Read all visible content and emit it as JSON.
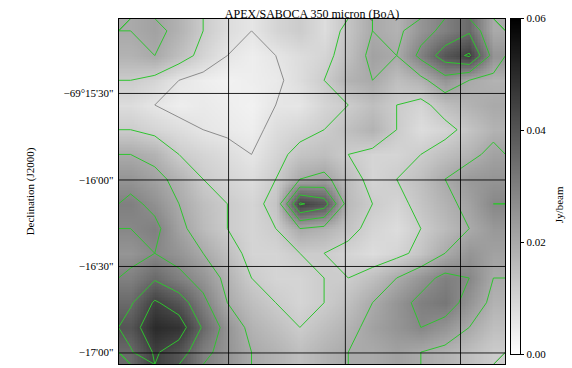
{
  "chart_data": {
    "type": "heatmap",
    "title": "APEX/SABOCA 350 micron (BoA)",
    "y_label": "Declination (J2000)",
    "xlim": [
      0,
      16
    ],
    "xticks": [
      4.55,
      9.38,
      14.14
    ],
    "ylim": [
      -69.284444,
      -69.251111
    ],
    "yticks": [
      {
        "value": -69.258333,
        "label": "−69°15'30\""
      },
      {
        "value": -69.266667,
        "label": "−16'00\""
      },
      {
        "value": -69.275,
        "label": "−16'30\""
      },
      {
        "value": -69.283333,
        "label": "−17'00\""
      }
    ],
    "grid": true,
    "tick_labels": "y",
    "cells": [
      [
        0.02,
        0.022,
        0.018,
        0.012,
        0.008,
        0.006,
        0.01,
        0.012,
        0.008,
        0.014,
        0.02,
        0.018,
        0.025,
        0.03,
        0.035,
        0.02
      ],
      [
        0.018,
        0.02,
        0.015,
        0.01,
        0.006,
        0.004,
        0.006,
        0.008,
        0.01,
        0.015,
        0.022,
        0.02,
        0.03,
        0.04,
        0.045,
        0.025
      ],
      [
        0.012,
        0.01,
        0.006,
        0.004,
        0.003,
        0.004,
        0.005,
        0.008,
        0.012,
        0.018,
        0.02,
        0.015,
        0.018,
        0.025,
        0.02,
        0.018
      ],
      [
        0.008,
        0.006,
        0.004,
        0.005,
        0.004,
        0.003,
        0.006,
        0.006,
        0.01,
        0.012,
        0.015,
        0.012,
        0.01,
        0.015,
        0.018,
        0.02
      ],
      [
        0.012,
        0.01,
        0.008,
        0.006,
        0.005,
        0.004,
        0.008,
        0.01,
        0.012,
        0.015,
        0.018,
        0.012,
        0.008,
        0.01,
        0.014,
        0.018
      ],
      [
        0.02,
        0.018,
        0.012,
        0.01,
        0.008,
        0.006,
        0.01,
        0.014,
        0.015,
        0.012,
        0.01,
        0.01,
        0.012,
        0.015,
        0.018,
        0.022
      ],
      [
        0.025,
        0.022,
        0.018,
        0.012,
        0.01,
        0.008,
        0.012,
        0.02,
        0.022,
        0.015,
        0.01,
        0.012,
        0.015,
        0.02,
        0.024,
        0.025
      ],
      [
        0.03,
        0.026,
        0.02,
        0.015,
        0.012,
        0.01,
        0.014,
        0.045,
        0.04,
        0.016,
        0.012,
        0.01,
        0.014,
        0.018,
        0.022,
        0.028
      ],
      [
        0.028,
        0.03,
        0.022,
        0.016,
        0.012,
        0.01,
        0.012,
        0.02,
        0.018,
        0.014,
        0.01,
        0.008,
        0.012,
        0.016,
        0.02,
        0.024
      ],
      [
        0.025,
        0.028,
        0.025,
        0.02,
        0.015,
        0.01,
        0.01,
        0.012,
        0.012,
        0.01,
        0.008,
        0.01,
        0.014,
        0.02,
        0.025,
        0.022
      ],
      [
        0.03,
        0.035,
        0.03,
        0.025,
        0.018,
        0.012,
        0.01,
        0.01,
        0.012,
        0.012,
        0.015,
        0.02,
        0.025,
        0.03,
        0.028,
        0.02
      ],
      [
        0.035,
        0.045,
        0.04,
        0.03,
        0.02,
        0.015,
        0.012,
        0.01,
        0.012,
        0.015,
        0.02,
        0.025,
        0.03,
        0.032,
        0.025,
        0.018
      ],
      [
        0.04,
        0.05,
        0.048,
        0.035,
        0.025,
        0.018,
        0.015,
        0.012,
        0.015,
        0.018,
        0.022,
        0.025,
        0.028,
        0.025,
        0.02,
        0.015
      ],
      [
        0.035,
        0.045,
        0.04,
        0.03,
        0.025,
        0.02,
        0.018,
        0.015,
        0.018,
        0.02,
        0.02,
        0.022,
        0.02,
        0.018,
        0.015,
        0.012
      ]
    ],
    "contour_levels": [
      0.006,
      0.012,
      0.02,
      0.028,
      0.036,
      0.044
    ],
    "colorbar": {
      "label": "Jy/beam",
      "range": [
        0,
        0.06
      ],
      "ticks": [
        {
          "value": 0,
          "label": "0.00"
        },
        0.02,
        0.04,
        0.06
      ],
      "colors": [
        "#ffffff",
        "#000000"
      ]
    }
  }
}
